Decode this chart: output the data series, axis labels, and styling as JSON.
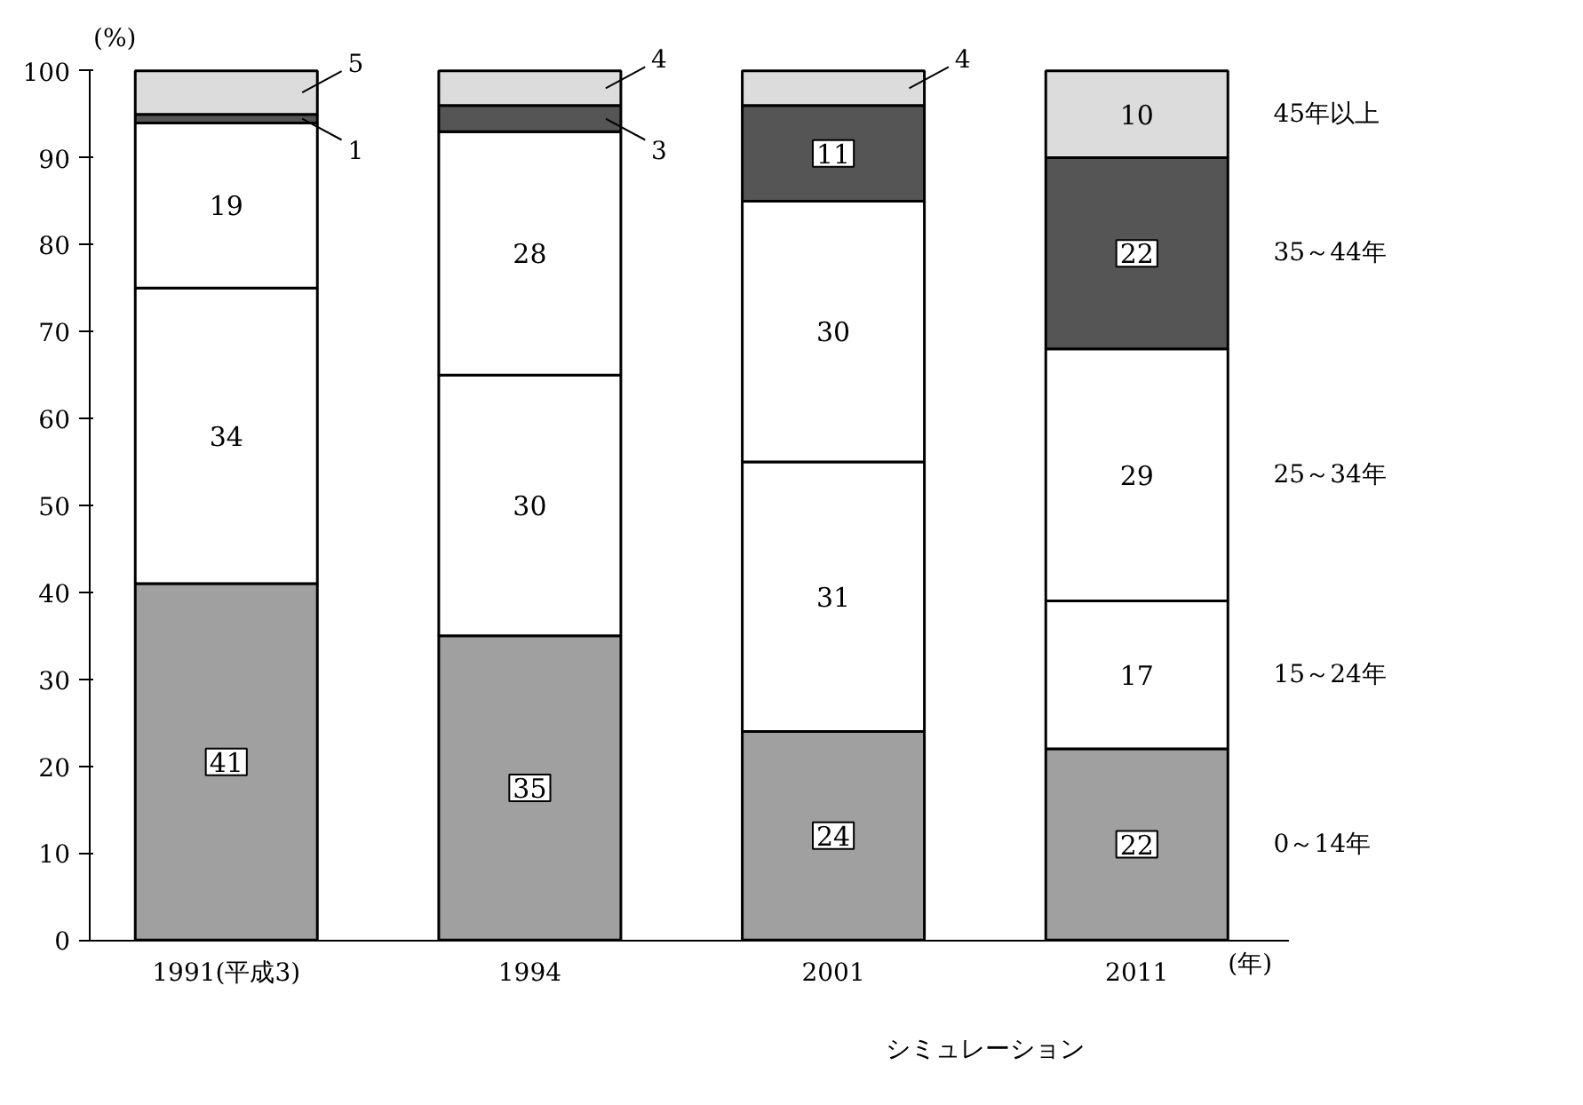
{
  "chart_data": {
    "type": "bar",
    "stacked": true,
    "ylabel": "(%)",
    "xlabel": "(年)",
    "categories": [
      "1991(平成3)",
      "1994",
      "2001",
      "2011"
    ],
    "series": [
      {
        "name": "0～14年",
        "color": "#a0a0a0",
        "values": [
          41,
          35,
          24,
          22
        ]
      },
      {
        "name": "15～24年",
        "color": "#ffffff",
        "values": [
          34,
          30,
          31,
          17
        ]
      },
      {
        "name": "25～34年",
        "color": "#ffffff",
        "values": [
          19,
          28,
          30,
          29
        ]
      },
      {
        "name": "35～44年",
        "color": "#555555",
        "values": [
          1,
          3,
          11,
          22
        ]
      },
      {
        "name": "45年以上",
        "color": "#dcdcdc",
        "values": [
          5,
          4,
          4,
          10
        ]
      }
    ],
    "ylim": [
      0,
      100
    ],
    "yticks": [
      0,
      10,
      20,
      30,
      40,
      50,
      60,
      70,
      80,
      90,
      100
    ],
    "grid": false,
    "legend": false,
    "data_labels": true,
    "annotations": [
      "シミュレーション"
    ]
  }
}
